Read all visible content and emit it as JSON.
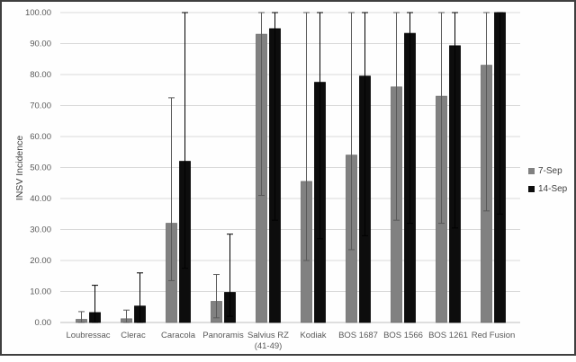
{
  "chart_data": {
    "type": "bar",
    "title": "",
    "ylabel": "INSV Incidence",
    "xlabel": "",
    "ylim": [
      0,
      100
    ],
    "grid": true,
    "legend_position": "right",
    "ytick_labels": [
      "0.00",
      "10.00",
      "20.00",
      "30.00",
      "40.00",
      "50.00",
      "60.00",
      "70.00",
      "80.00",
      "90.00",
      "100.00"
    ],
    "ytick_values": [
      0,
      10,
      20,
      30,
      40,
      50,
      60,
      70,
      80,
      90,
      100
    ],
    "categories": [
      {
        "line1": "Loubressac",
        "line2": ""
      },
      {
        "line1": "Clerac",
        "line2": ""
      },
      {
        "line1": "Caracola",
        "line2": ""
      },
      {
        "line1": "Panoramis",
        "line2": ""
      },
      {
        "line1": "Salvius RZ",
        "line2": "(41-49)"
      },
      {
        "line1": "Kodiak",
        "line2": ""
      },
      {
        "line1": "BOS 1687",
        "line2": ""
      },
      {
        "line1": "BOS 1566",
        "line2": ""
      },
      {
        "line1": "BOS 1261",
        "line2": ""
      },
      {
        "line1": "Red Fusion",
        "line2": ""
      }
    ],
    "series": [
      {
        "name": "7-Sep",
        "color": "#818181",
        "edge_color": "#6c6c6c",
        "error_color": "#595959",
        "values": [
          1.0,
          1.2,
          32.0,
          6.8,
          93.0,
          45.5,
          54.0,
          76.0,
          73.0,
          83.0
        ],
        "error_low": [
          0.0,
          0.0,
          13.5,
          1.5,
          41.0,
          20.0,
          23.5,
          33.0,
          32.0,
          36.0
        ],
        "error_high": [
          3.5,
          4.0,
          72.5,
          15.5,
          100.0,
          100.0,
          100.0,
          100.0,
          100.0,
          100.0
        ]
      },
      {
        "name": "14-Sep",
        "color": "#0d0d0d",
        "edge_color": "#000000",
        "error_color": "#000000",
        "values": [
          3.2,
          5.3,
          52.0,
          9.7,
          94.8,
          77.5,
          79.5,
          93.3,
          89.3,
          100.0
        ],
        "error_low": [
          0.0,
          0.0,
          17.5,
          2.0,
          33.0,
          27.0,
          28.0,
          32.0,
          30.5,
          35.0
        ],
        "error_high": [
          12.0,
          16.0,
          100.0,
          28.5,
          100.0,
          100.0,
          100.0,
          100.0,
          100.0,
          100.0
        ]
      }
    ]
  },
  "colors": {
    "gridline": "#d9d9d9",
    "axis_line": "#bfbfbf",
    "frame_border": "#3f3f3f"
  }
}
